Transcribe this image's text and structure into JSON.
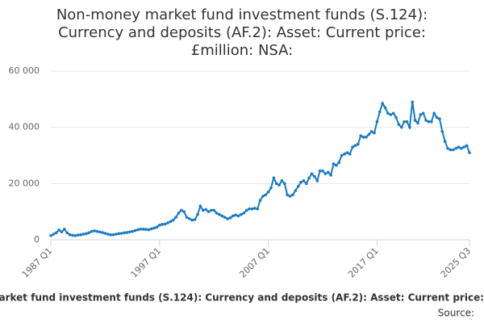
{
  "chart_data": {
    "type": "line",
    "title": "Non-money market fund investment funds (S.124): Currency and deposits (AF.2): Asset: Current price: £million: NSA:",
    "categories": [
      "1987 Q1",
      null,
      null,
      null,
      null,
      null,
      null,
      null,
      null,
      null,
      null,
      null,
      null,
      null,
      null,
      null,
      null,
      null,
      null,
      null,
      null,
      null,
      null,
      null,
      null,
      null,
      null,
      null,
      null,
      null,
      null,
      null,
      null,
      null,
      null,
      null,
      null,
      null,
      null,
      null,
      "1997 Q1",
      null,
      null,
      null,
      null,
      null,
      null,
      null,
      null,
      null,
      null,
      null,
      null,
      null,
      null,
      null,
      null,
      null,
      null,
      null,
      null,
      null,
      null,
      null,
      null,
      null,
      null,
      null,
      null,
      null,
      null,
      null,
      null,
      null,
      null,
      null,
      null,
      null,
      null,
      null,
      "2007 Q1",
      null,
      null,
      null,
      null,
      null,
      null,
      null,
      null,
      null,
      null,
      null,
      null,
      null,
      null,
      null,
      null,
      null,
      null,
      null,
      null,
      null,
      null,
      null,
      null,
      null,
      null,
      null,
      null,
      null,
      null,
      null,
      null,
      null,
      null,
      null,
      null,
      null,
      null,
      null,
      "2017 Q1",
      null,
      null,
      null,
      null,
      null,
      null,
      null,
      null,
      null,
      null,
      null,
      null,
      null,
      null,
      null,
      null,
      null,
      null,
      null,
      null,
      null,
      null,
      null,
      null,
      null,
      null,
      null,
      null,
      null,
      null,
      null,
      null,
      null,
      "2025 Q3"
    ],
    "series": [
      {
        "name": "Non-money market fund investment funds (S.124): Currency and deposits (AF.2): Asset: Current price: £million: NSA",
        "color": "#1a7bbf",
        "values": [
          1500,
          2000,
          2500,
          3500,
          2800,
          3800,
          2500,
          1800,
          1600,
          1500,
          1700,
          1800,
          2000,
          2200,
          2500,
          3000,
          3200,
          3000,
          2800,
          2600,
          2300,
          2000,
          1800,
          1800,
          2000,
          2200,
          2300,
          2500,
          2600,
          2800,
          3000,
          3300,
          3600,
          3800,
          3800,
          3700,
          3600,
          3900,
          4200,
          4500,
          5200,
          5500,
          5600,
          6000,
          6500,
          7000,
          8000,
          9500,
          10500,
          10000,
          8000,
          7500,
          7000,
          7200,
          9000,
          12000,
          10500,
          10800,
          10000,
          10500,
          10500,
          9500,
          9000,
          8500,
          8000,
          7500,
          7800,
          8500,
          8800,
          8500,
          9000,
          9500,
          10500,
          11000,
          11000,
          11200,
          11000,
          14000,
          15500,
          16000,
          17000,
          18500,
          22000,
          20000,
          19500,
          21000,
          20000,
          16000,
          15500,
          16000,
          17500,
          19000,
          20500,
          21000,
          20000,
          22000,
          23500,
          22500,
          21000,
          24500,
          24500,
          23500,
          24000,
          23000,
          27000,
          26500,
          27500,
          30000,
          30500,
          31000,
          30500,
          33000,
          33500,
          34000,
          37000,
          36500,
          36500,
          37500,
          38500,
          38000,
          42000,
          45500,
          48500,
          47000,
          45000,
          44500,
          45000,
          43500,
          41000,
          40000,
          42000,
          42000,
          40000,
          49000,
          42500,
          41500,
          44500,
          45000,
          42500,
          42000,
          42000,
          45000,
          43500,
          43000,
          38500,
          35000,
          32500,
          32000,
          32000,
          32500,
          33000,
          32500,
          33000,
          33500,
          31000
        ]
      }
    ],
    "ylim": [
      0,
      60000
    ],
    "yticks": [
      0,
      {
        "value": 20000,
        "label": "20 000"
      },
      {
        "value": 40000,
        "label": "40 000"
      },
      {
        "value": 60000,
        "label": "60 000"
      }
    ],
    "grid": true,
    "source": "Source:"
  }
}
